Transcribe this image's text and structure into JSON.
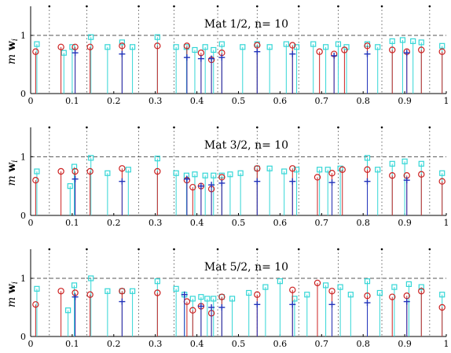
{
  "chart_data": [
    {
      "type": "stem",
      "title": "Mat 1/2, n= 10",
      "ylabel": "m w_i",
      "xlim": [
        0,
        1
      ],
      "ylim": [
        0,
        1.5
      ],
      "xticks": [
        "0",
        "0.1",
        "0.2",
        "0.3",
        "0.4",
        "0.5",
        "0.6",
        "0.7",
        "0.8",
        "0.9",
        "1"
      ],
      "yticks": [
        "0",
        "1"
      ],
      "reference_line": 1,
      "dotted_lines_x": [
        0.045,
        0.135,
        0.26,
        0.345,
        0.45,
        0.545,
        0.645,
        0.74,
        0.845,
        0.96
      ],
      "series": [
        {
          "marker": "square",
          "color": "#33d6d6",
          "x": [
            0.015,
            0.08,
            0.1,
            0.145,
            0.185,
            0.22,
            0.245,
            0.305,
            0.35,
            0.375,
            0.395,
            0.42,
            0.44,
            0.46,
            0.51,
            0.545,
            0.575,
            0.615,
            0.64,
            0.68,
            0.71,
            0.74,
            0.76,
            0.81,
            0.835,
            0.87,
            0.895,
            0.92,
            0.94,
            0.99
          ],
          "y": [
            0.85,
            0.7,
            0.8,
            0.97,
            0.8,
            0.88,
            0.8,
            0.97,
            0.8,
            0.8,
            0.75,
            0.8,
            0.75,
            0.85,
            0.8,
            0.85,
            0.8,
            0.85,
            0.8,
            0.85,
            0.8,
            0.85,
            0.8,
            0.85,
            0.8,
            0.9,
            0.92,
            0.9,
            0.88,
            0.82
          ]
        },
        {
          "marker": "circle",
          "color": "#cc2222",
          "x": [
            0.012,
            0.073,
            0.107,
            0.143,
            0.22,
            0.305,
            0.376,
            0.41,
            0.435,
            0.46,
            0.545,
            0.63,
            0.695,
            0.73,
            0.755,
            0.81,
            0.87,
            0.905,
            0.94,
            0.99
          ],
          "y": [
            0.72,
            0.8,
            0.8,
            0.8,
            0.82,
            0.82,
            0.82,
            0.7,
            0.58,
            0.7,
            0.83,
            0.83,
            0.72,
            0.68,
            0.75,
            0.82,
            0.75,
            0.72,
            0.75,
            0.72
          ]
        },
        {
          "marker": "plus",
          "color": "#2233bb",
          "x": [
            0.107,
            0.22,
            0.376,
            0.41,
            0.435,
            0.46,
            0.545,
            0.63,
            0.73,
            0.81,
            0.905
          ],
          "y": [
            0.7,
            0.68,
            0.62,
            0.6,
            0.6,
            0.62,
            0.72,
            0.68,
            0.65,
            0.68,
            0.7
          ]
        }
      ]
    },
    {
      "type": "stem",
      "title": "Mat 3/2, n= 10",
      "ylabel": "m w_i",
      "xlim": [
        0,
        1
      ],
      "ylim": [
        0,
        1.5
      ],
      "xticks": [
        "0",
        "0.1",
        "0.2",
        "0.3",
        "0.4",
        "0.5",
        "0.6",
        "0.7",
        "0.8",
        "0.9",
        "1"
      ],
      "yticks": [
        "0",
        "1"
      ],
      "reference_line": 1,
      "dotted_lines_x": [
        0.045,
        0.135,
        0.26,
        0.345,
        0.45,
        0.545,
        0.645,
        0.74,
        0.845,
        0.96
      ],
      "series": [
        {
          "marker": "square",
          "color": "#33d6d6",
          "x": [
            0.015,
            0.095,
            0.105,
            0.145,
            0.185,
            0.235,
            0.305,
            0.35,
            0.375,
            0.395,
            0.42,
            0.44,
            0.46,
            0.48,
            0.505,
            0.545,
            0.575,
            0.61,
            0.64,
            0.695,
            0.715,
            0.745,
            0.81,
            0.835,
            0.87,
            0.9,
            0.94,
            0.99
          ],
          "y": [
            0.75,
            0.5,
            0.83,
            0.98,
            0.72,
            0.78,
            0.97,
            0.72,
            0.68,
            0.7,
            0.68,
            0.68,
            0.68,
            0.7,
            0.72,
            0.8,
            0.8,
            0.75,
            0.78,
            0.78,
            0.78,
            0.8,
            0.98,
            0.78,
            0.88,
            0.92,
            0.88,
            0.72
          ]
        },
        {
          "marker": "circle",
          "color": "#cc2222",
          "x": [
            0.012,
            0.073,
            0.107,
            0.143,
            0.22,
            0.305,
            0.376,
            0.39,
            0.41,
            0.435,
            0.46,
            0.545,
            0.63,
            0.69,
            0.725,
            0.75,
            0.81,
            0.87,
            0.905,
            0.94,
            0.99
          ],
          "y": [
            0.6,
            0.75,
            0.75,
            0.75,
            0.8,
            0.75,
            0.6,
            0.48,
            0.5,
            0.45,
            0.65,
            0.8,
            0.8,
            0.65,
            0.72,
            0.78,
            0.78,
            0.68,
            0.68,
            0.7,
            0.58
          ]
        },
        {
          "marker": "plus",
          "color": "#2233bb",
          "x": [
            0.107,
            0.22,
            0.376,
            0.41,
            0.435,
            0.46,
            0.545,
            0.63,
            0.725,
            0.81,
            0.905
          ],
          "y": [
            0.62,
            0.58,
            0.62,
            0.5,
            0.52,
            0.55,
            0.58,
            0.58,
            0.56,
            0.58,
            0.6
          ]
        }
      ]
    },
    {
      "type": "stem",
      "title": "Mat 5/2, n= 10",
      "ylabel": "m w_i",
      "xlim": [
        0,
        1
      ],
      "ylim": [
        0,
        1.5
      ],
      "xticks": [
        "0",
        "0.1",
        "0.2",
        "0.3",
        "0.4",
        "0.5",
        "0.6",
        "0.7",
        "0.8",
        "0.9",
        "1"
      ],
      "yticks": [
        "0",
        "1"
      ],
      "reference_line": 1,
      "dotted_lines_x": [
        0.045,
        0.135,
        0.26,
        0.345,
        0.45,
        0.545,
        0.645,
        0.74,
        0.845,
        0.96
      ],
      "series": [
        {
          "marker": "square",
          "color": "#33d6d6",
          "x": [
            0.015,
            0.09,
            0.105,
            0.145,
            0.185,
            0.22,
            0.245,
            0.305,
            0.35,
            0.37,
            0.39,
            0.41,
            0.425,
            0.44,
            0.46,
            0.485,
            0.525,
            0.565,
            0.6,
            0.635,
            0.665,
            0.71,
            0.745,
            0.77,
            0.81,
            0.84,
            0.875,
            0.91,
            0.94,
            0.99
          ],
          "y": [
            0.82,
            0.45,
            0.88,
            1.0,
            0.78,
            0.78,
            0.78,
            0.95,
            0.82,
            0.72,
            0.65,
            0.68,
            0.65,
            0.65,
            0.68,
            0.65,
            0.75,
            0.85,
            0.95,
            0.65,
            0.72,
            0.88,
            0.85,
            0.72,
            0.95,
            0.75,
            0.85,
            0.9,
            0.85,
            0.72
          ]
        },
        {
          "marker": "circle",
          "color": "#cc2222",
          "x": [
            0.012,
            0.073,
            0.107,
            0.143,
            0.22,
            0.305,
            0.376,
            0.39,
            0.41,
            0.435,
            0.46,
            0.545,
            0.63,
            0.69,
            0.725,
            0.81,
            0.87,
            0.905,
            0.94,
            0.99
          ],
          "y": [
            0.55,
            0.78,
            0.75,
            0.72,
            0.78,
            0.75,
            0.6,
            0.45,
            0.52,
            0.4,
            0.68,
            0.72,
            0.8,
            0.92,
            0.78,
            0.7,
            0.68,
            0.7,
            0.78,
            0.5
          ]
        },
        {
          "marker": "plus",
          "color": "#2233bb",
          "x": [
            0.107,
            0.22,
            0.37,
            0.41,
            0.435,
            0.46,
            0.545,
            0.63,
            0.725,
            0.81,
            0.905
          ],
          "y": [
            0.68,
            0.6,
            0.72,
            0.52,
            0.5,
            0.5,
            0.55,
            0.55,
            0.55,
            0.58,
            0.6
          ]
        }
      ]
    }
  ]
}
